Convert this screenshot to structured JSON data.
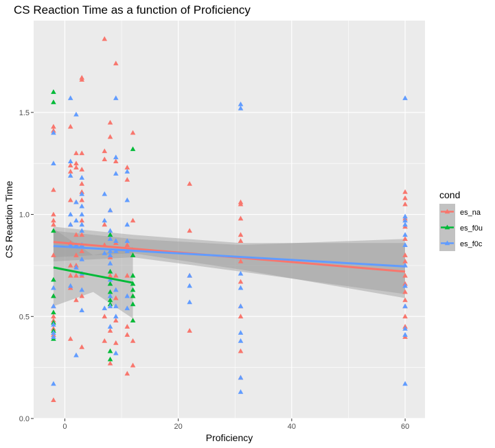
{
  "chart_data": {
    "type": "scatter",
    "title": "CS Reaction Time as a function of Proficiency",
    "xlabel": "Proficiency",
    "ylabel": "CS Reaction Time",
    "xlim": [
      -5.5,
      63.5
    ],
    "ylim": [
      0.0,
      1.95
    ],
    "x_ticks": [
      0,
      20,
      40,
      60
    ],
    "y_ticks": [
      0.0,
      0.5,
      1.0,
      1.5
    ],
    "x_tick_labels": [
      "0",
      "20",
      "40",
      "60"
    ],
    "y_tick_labels": [
      "0.0",
      "0.5",
      "1.0",
      "1.5"
    ],
    "grid": true,
    "legend_position": "right",
    "legend": {
      "title": "cond",
      "entries": [
        "es_na",
        "es_f0u",
        "es_f0c"
      ]
    },
    "colors": {
      "es_na": "#F8766D",
      "es_f0u": "#00BA38",
      "es_f0c": "#619CFF",
      "panel_bg": "#EBEBEB",
      "grid": "#FFFFFF",
      "ribbon": "#999999"
    },
    "series": [
      {
        "name": "es_na",
        "color": "#F8766D",
        "points": [
          [
            -2,
            0.09
          ],
          [
            -2,
            0.41
          ],
          [
            -2,
            0.44
          ],
          [
            -2,
            0.48
          ],
          [
            -2,
            0.5
          ],
          [
            -2,
            0.55
          ],
          [
            -2,
            0.6
          ],
          [
            -2,
            0.8
          ],
          [
            -2,
            0.95
          ],
          [
            -2,
            0.97
          ],
          [
            -2,
            1.0
          ],
          [
            -2,
            1.12
          ],
          [
            -2,
            1.41
          ],
          [
            -2,
            1.43
          ],
          [
            1,
            0.39
          ],
          [
            1,
            0.64
          ],
          [
            1,
            0.7
          ],
          [
            1,
            0.75
          ],
          [
            1,
            0.86
          ],
          [
            1,
            0.95
          ],
          [
            1,
            1.07
          ],
          [
            1,
            1.21
          ],
          [
            1,
            1.24
          ],
          [
            1,
            1.43
          ],
          [
            2,
            0.58
          ],
          [
            2,
            0.7
          ],
          [
            2,
            0.75
          ],
          [
            2,
            0.8
          ],
          [
            2,
            0.9
          ],
          [
            2,
            1.06
          ],
          [
            2,
            1.23
          ],
          [
            2,
            1.25
          ],
          [
            2,
            1.3
          ],
          [
            3,
            0.35
          ],
          [
            3,
            0.6
          ],
          [
            3,
            0.7
          ],
          [
            3,
            0.82
          ],
          [
            3,
            0.9
          ],
          [
            3,
            0.97
          ],
          [
            3,
            1.07
          ],
          [
            3,
            1.11
          ],
          [
            3,
            1.15
          ],
          [
            3,
            1.22
          ],
          [
            3,
            1.3
          ],
          [
            3,
            1.66
          ],
          [
            3,
            1.67
          ],
          [
            7,
            0.38
          ],
          [
            7,
            0.5
          ],
          [
            7,
            0.85
          ],
          [
            7,
            0.95
          ],
          [
            7,
            1.27
          ],
          [
            7,
            1.31
          ],
          [
            7,
            1.86
          ],
          [
            8,
            0.27
          ],
          [
            8,
            0.43
          ],
          [
            8,
            0.7
          ],
          [
            8,
            0.79
          ],
          [
            8,
            1.02
          ],
          [
            8,
            1.38
          ],
          [
            8,
            1.45
          ],
          [
            9,
            0.37
          ],
          [
            9,
            0.48
          ],
          [
            9,
            0.59
          ],
          [
            9,
            0.7
          ],
          [
            9,
            0.86
          ],
          [
            9,
            1.26
          ],
          [
            9,
            1.74
          ],
          [
            11,
            0.22
          ],
          [
            11,
            0.41
          ],
          [
            11,
            0.45
          ],
          [
            11,
            0.7
          ],
          [
            11,
            0.85
          ],
          [
            11,
            1.17
          ],
          [
            11,
            1.23
          ],
          [
            12,
            0.26
          ],
          [
            12,
            0.38
          ],
          [
            12,
            0.48
          ],
          [
            12,
            0.6
          ],
          [
            12,
            0.8
          ],
          [
            12,
            0.97
          ],
          [
            12,
            1.4
          ],
          [
            22,
            0.43
          ],
          [
            22,
            0.7
          ],
          [
            22,
            0.92
          ],
          [
            22,
            1.15
          ],
          [
            31,
            0.2
          ],
          [
            31,
            0.33
          ],
          [
            31,
            0.5
          ],
          [
            31,
            0.55
          ],
          [
            31,
            0.67
          ],
          [
            31,
            0.77
          ],
          [
            31,
            0.87
          ],
          [
            31,
            0.9
          ],
          [
            31,
            0.98
          ],
          [
            31,
            1.05
          ],
          [
            31,
            1.06
          ],
          [
            60,
            0.4
          ],
          [
            60,
            0.45
          ],
          [
            60,
            0.5
          ],
          [
            60,
            0.55
          ],
          [
            60,
            0.58
          ],
          [
            60,
            0.62
          ],
          [
            60,
            0.66
          ],
          [
            60,
            0.7
          ],
          [
            60,
            0.77
          ],
          [
            60,
            0.8
          ],
          [
            60,
            0.88
          ],
          [
            60,
            0.94
          ],
          [
            60,
            0.98
          ],
          [
            60,
            1.05
          ],
          [
            60,
            1.08
          ],
          [
            60,
            1.11
          ]
        ],
        "fit_line": [
          [
            -2,
            0.865
          ],
          [
            60,
            0.72
          ]
        ],
        "ribbon": [
          [
            -2,
            0.79,
            0.94
          ],
          [
            12,
            0.81,
            0.9
          ],
          [
            31,
            0.73,
            0.86
          ],
          [
            60,
            0.59,
            0.86
          ]
        ]
      },
      {
        "name": "es_f0u",
        "color": "#00BA38",
        "points": [
          [
            -2,
            0.39
          ],
          [
            -2,
            0.43
          ],
          [
            -2,
            0.47
          ],
          [
            -2,
            0.52
          ],
          [
            -2,
            0.6
          ],
          [
            -2,
            0.68
          ],
          [
            -2,
            0.92
          ],
          [
            -2,
            1.55
          ],
          [
            -2,
            1.6
          ],
          [
            8,
            0.29
          ],
          [
            8,
            0.33
          ],
          [
            8,
            0.56
          ],
          [
            8,
            0.58
          ],
          [
            8,
            0.62
          ],
          [
            8,
            0.66
          ],
          [
            8,
            0.72
          ],
          [
            8,
            0.9
          ],
          [
            12,
            0.48
          ],
          [
            12,
            0.56
          ],
          [
            12,
            0.6
          ],
          [
            12,
            0.63
          ],
          [
            12,
            0.66
          ],
          [
            12,
            0.7
          ],
          [
            12,
            0.8
          ],
          [
            12,
            1.32
          ]
        ],
        "fit_line": [
          [
            -2,
            0.74
          ],
          [
            12,
            0.665
          ]
        ],
        "ribbon": [
          [
            -2,
            0.55,
            0.93
          ],
          [
            5,
            0.62,
            0.8
          ],
          [
            12,
            0.49,
            0.84
          ]
        ]
      },
      {
        "name": "es_f0c",
        "color": "#619CFF",
        "points": [
          [
            -2,
            0.17
          ],
          [
            -2,
            0.4
          ],
          [
            -2,
            0.42
          ],
          [
            -2,
            0.46
          ],
          [
            -2,
            0.55
          ],
          [
            -2,
            0.64
          ],
          [
            -2,
            1.25
          ],
          [
            -2,
            1.4
          ],
          [
            1,
            0.65
          ],
          [
            1,
            0.85
          ],
          [
            1,
            0.95
          ],
          [
            1,
            1.0
          ],
          [
            1,
            1.19
          ],
          [
            1,
            1.26
          ],
          [
            1,
            1.57
          ],
          [
            2,
            0.31
          ],
          [
            2,
            0.74
          ],
          [
            2,
            0.85
          ],
          [
            2,
            0.97
          ],
          [
            2,
            1.06
          ],
          [
            2,
            1.49
          ],
          [
            3,
            0.53
          ],
          [
            3,
            0.63
          ],
          [
            3,
            0.71
          ],
          [
            3,
            0.78
          ],
          [
            3,
            0.85
          ],
          [
            3,
            0.92
          ],
          [
            3,
            0.95
          ],
          [
            3,
            1.0
          ],
          [
            3,
            1.04
          ],
          [
            3,
            1.1
          ],
          [
            3,
            1.18
          ],
          [
            7,
            0.54
          ],
          [
            7,
            0.81
          ],
          [
            7,
            0.97
          ],
          [
            7,
            1.1
          ],
          [
            8,
            0.45
          ],
          [
            8,
            0.55
          ],
          [
            8,
            0.6
          ],
          [
            8,
            0.68
          ],
          [
            8,
            0.76
          ],
          [
            8,
            0.8
          ],
          [
            8,
            0.82
          ],
          [
            8,
            0.88
          ],
          [
            8,
            0.92
          ],
          [
            8,
            1.02
          ],
          [
            9,
            0.32
          ],
          [
            9,
            0.5
          ],
          [
            9,
            0.55
          ],
          [
            9,
            0.63
          ],
          [
            9,
            0.82
          ],
          [
            9,
            0.87
          ],
          [
            9,
            1.2
          ],
          [
            9,
            1.28
          ],
          [
            9,
            1.57
          ],
          [
            11,
            0.54
          ],
          [
            11,
            0.6
          ],
          [
            11,
            0.82
          ],
          [
            11,
            0.87
          ],
          [
            11,
            0.95
          ],
          [
            11,
            1.07
          ],
          [
            11,
            1.21
          ],
          [
            22,
            0.57
          ],
          [
            22,
            0.65
          ],
          [
            22,
            0.7
          ],
          [
            31,
            0.13
          ],
          [
            31,
            0.2
          ],
          [
            31,
            0.38
          ],
          [
            31,
            0.42
          ],
          [
            31,
            0.55
          ],
          [
            31,
            0.64
          ],
          [
            31,
            0.71
          ],
          [
            31,
            1.52
          ],
          [
            31,
            1.54
          ],
          [
            60,
            0.17
          ],
          [
            60,
            0.41
          ],
          [
            60,
            0.44
          ],
          [
            60,
            0.55
          ],
          [
            60,
            0.65
          ],
          [
            60,
            0.75
          ],
          [
            60,
            0.85
          ],
          [
            60,
            0.9
          ],
          [
            60,
            0.95
          ],
          [
            60,
            0.97
          ],
          [
            60,
            0.99
          ],
          [
            60,
            1.57
          ]
        ],
        "fit_line": [
          [
            -2,
            0.845
          ],
          [
            60,
            0.745
          ]
        ],
        "ribbon": [
          [
            -2,
            0.77,
            0.92
          ],
          [
            12,
            0.79,
            0.88
          ],
          [
            31,
            0.72,
            0.85
          ],
          [
            60,
            0.61,
            0.88
          ]
        ]
      }
    ]
  }
}
